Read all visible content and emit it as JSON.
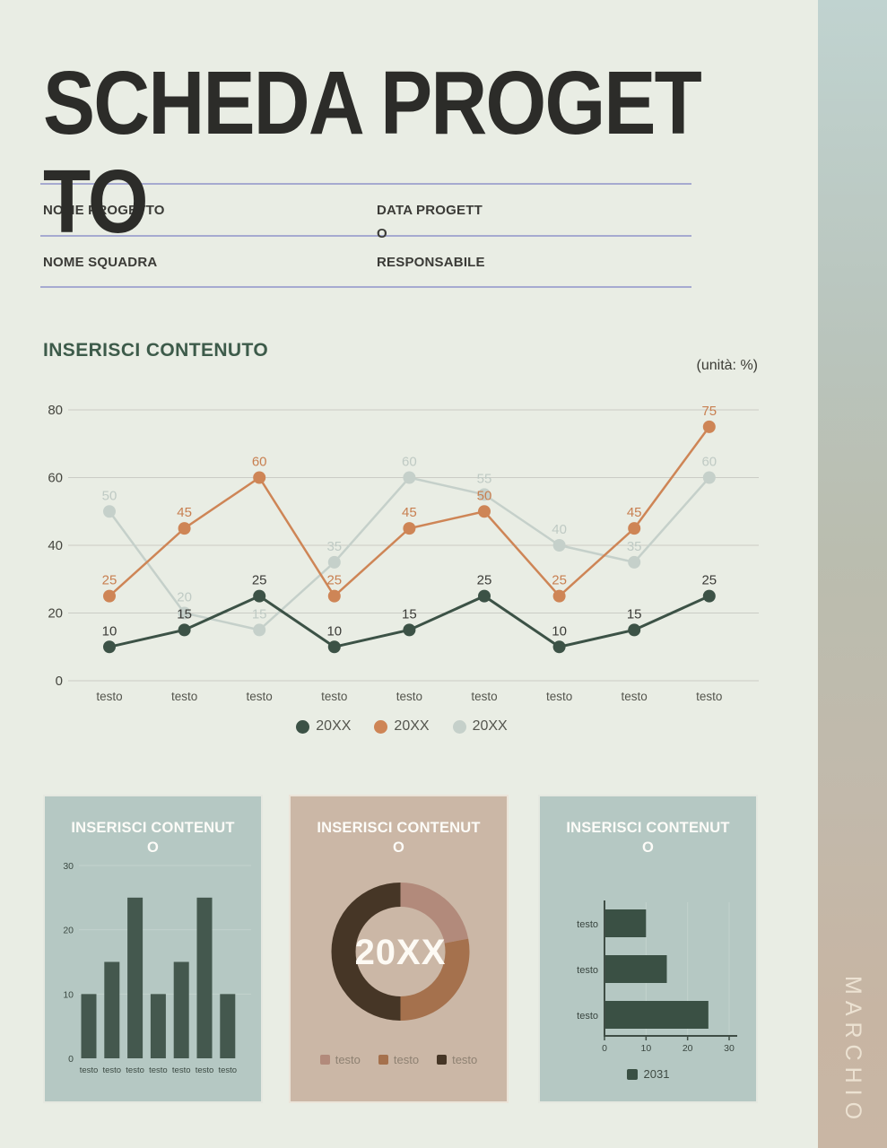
{
  "page": {
    "title": "SCHEDA PROGETTO",
    "sidebar_label": "MARCHIO",
    "background": "#e9ede4",
    "accent_line_color": "#9a9dcd"
  },
  "form": {
    "fields": [
      "NOME PROGETTO",
      "DATA PROGETTO",
      "NOME SQUADRA",
      "RESPONSABILE"
    ]
  },
  "cards": [
    {
      "bg": "#b5c8c3"
    },
    {
      "bg": "#cbb7a6"
    },
    {
      "bg": "#b5c8c3"
    }
  ],
  "chart_data": [
    {
      "id": "main-line",
      "type": "line",
      "title": "INSERISCI CONTENUTO",
      "unit": "(unità: %)",
      "categories": [
        "testo",
        "testo",
        "testo",
        "testo",
        "testo",
        "testo",
        "testo",
        "testo",
        "testo"
      ],
      "series": [
        {
          "name": "20XX",
          "color": "#3c5246",
          "label_color": "#3b3b37",
          "values": [
            10,
            15,
            25,
            10,
            15,
            25,
            10,
            15,
            25
          ]
        },
        {
          "name": "20XX",
          "color": "#ce8556",
          "label_color": "#c87f50",
          "values": [
            25,
            45,
            60,
            25,
            45,
            50,
            25,
            45,
            75
          ]
        },
        {
          "name": "20XX",
          "color": "#c5d0ca",
          "label_color": "#bfcac4",
          "values": [
            50,
            20,
            15,
            35,
            60,
            55,
            40,
            35,
            60
          ]
        }
      ],
      "ylim": [
        0,
        80
      ],
      "yticks": [
        0,
        20,
        40,
        60,
        80
      ],
      "grid": true,
      "legend_position": "bottom"
    },
    {
      "id": "card-bar",
      "type": "bar",
      "title": "INSERISCI CONTENUTO",
      "categories": [
        "testo",
        "testo",
        "testo",
        "testo",
        "testo",
        "testo",
        "testo"
      ],
      "values": [
        10,
        15,
        25,
        10,
        15,
        25,
        10
      ],
      "bar_color": "#44584e",
      "ylim": [
        0,
        30
      ],
      "yticks": [
        0,
        10,
        20,
        30
      ],
      "grid": true
    },
    {
      "id": "card-donut",
      "type": "pie",
      "title": "INSERISCI CONTENUTO",
      "center_label": "20XX",
      "slices": [
        {
          "label": "testo",
          "value": 22,
          "color": "#b28a7b"
        },
        {
          "label": "testo",
          "value": 28,
          "color": "#a5714d"
        },
        {
          "label": "testo",
          "value": 50,
          "color": "#463626"
        }
      ],
      "legend_position": "bottom"
    },
    {
      "id": "card-hbar",
      "type": "bar",
      "orientation": "horizontal",
      "title": "INSERISCI CONTENUTO",
      "categories": [
        "testo",
        "testo",
        "testo"
      ],
      "values": [
        10,
        15,
        25
      ],
      "bar_color": "#3a5044",
      "xlim": [
        0,
        30
      ],
      "xticks": [
        0,
        10,
        20,
        30
      ],
      "legend": [
        {
          "label": "2031",
          "color": "#3a5044"
        }
      ]
    }
  ]
}
